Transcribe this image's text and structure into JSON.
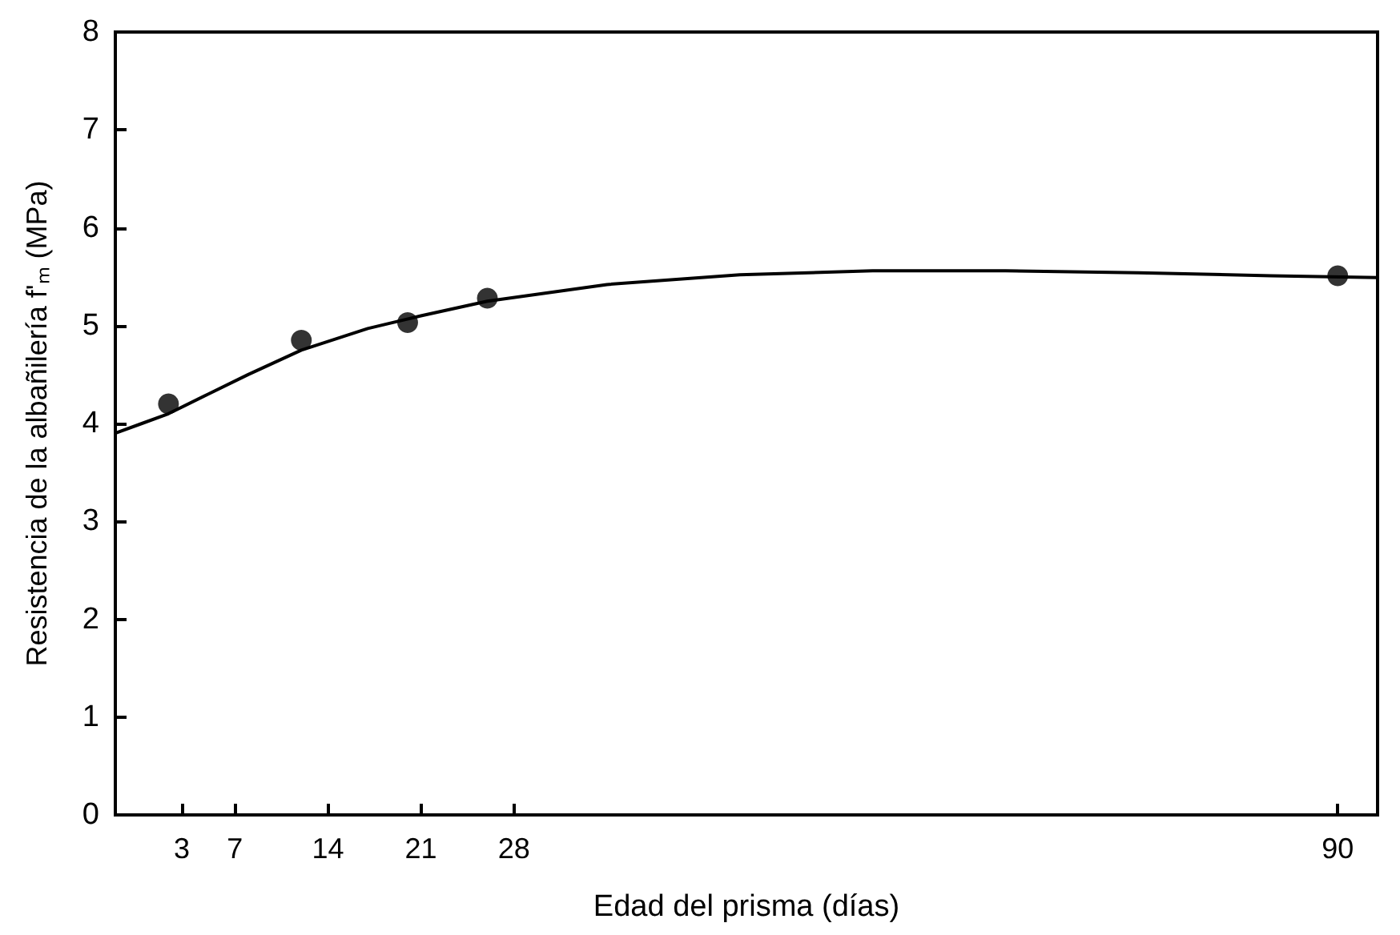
{
  "chart_data": {
    "type": "scatter",
    "xlabel": "Edad del prisma (días)",
    "ylabel": "Resistencia de la albañilería f'ₘ (MPa)",
    "xlim": [
      -2,
      93
    ],
    "xticks": [
      3,
      7,
      14,
      21,
      28,
      90
    ],
    "ylim": [
      0,
      8
    ],
    "yticks": [
      0,
      1,
      2,
      3,
      4,
      5,
      6,
      7,
      8
    ],
    "grid": false,
    "series": [
      {
        "color": "#000000",
        "marker": "circle",
        "x": [
          2,
          12,
          20,
          26,
          90
        ],
        "values": [
          4.2,
          4.85,
          5.03,
          5.28,
          5.51
        ]
      },
      {
        "type": "line",
        "color": "#000000",
        "marker": "none",
        "line_style": "solid",
        "x": [
          -2,
          0,
          2,
          5,
          8,
          12,
          17,
          21,
          26,
          35,
          45,
          55,
          65,
          75,
          85,
          93
        ],
        "values": [
          3.9,
          4.0,
          4.1,
          4.3,
          4.5,
          4.75,
          4.97,
          5.1,
          5.25,
          5.42,
          5.52,
          5.56,
          5.56,
          5.54,
          5.51,
          5.49
        ]
      }
    ]
  }
}
